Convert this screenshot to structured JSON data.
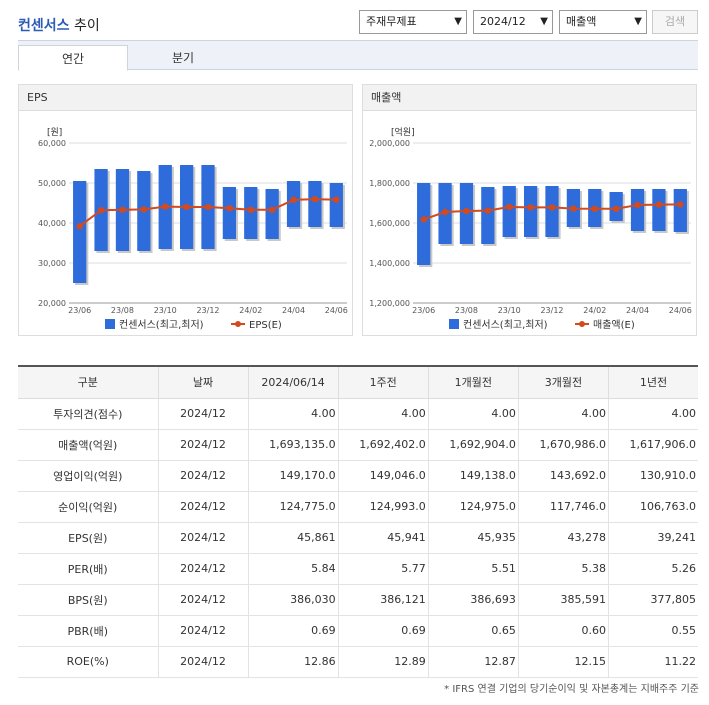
{
  "header": {
    "title_main": "컨센서스",
    "title_rest": " 추이",
    "select_type": "주재무제표",
    "select_date": "2024/12",
    "select_metric": "매출액",
    "search_label": "검색"
  },
  "tabs": [
    {
      "label": "연간"
    },
    {
      "label": "분기"
    }
  ],
  "colors": {
    "bar": "#2e6cdc",
    "line": "#d24a1e",
    "accent": "#2c5bb8"
  },
  "chart_data": [
    {
      "type": "bar",
      "title": "EPS",
      "unit": "[원]",
      "categories": [
        "23/06",
        "23/07",
        "23/08",
        "23/09",
        "23/10",
        "23/11",
        "23/12",
        "24/01",
        "24/02",
        "24/03",
        "24/04",
        "24/05",
        "24/06"
      ],
      "x_tick_labels": [
        "23/06",
        "23/08",
        "23/10",
        "23/12",
        "24/02",
        "24/04",
        "24/06"
      ],
      "ylim": [
        20000,
        60000
      ],
      "y_ticks": [
        20000,
        30000,
        40000,
        50000,
        60000
      ],
      "y_tick_labels": [
        "20,000",
        "30,000",
        "40,000",
        "50,000",
        "60,000"
      ],
      "series": [
        {
          "name": "컨센서스(최고,최저)",
          "type": "range",
          "low": [
            25000,
            33000,
            33000,
            33000,
            33500,
            33500,
            33500,
            36000,
            36000,
            36000,
            39000,
            39000,
            39000
          ],
          "high": [
            50500,
            53500,
            53500,
            53000,
            54500,
            54500,
            54500,
            49000,
            49000,
            48500,
            50500,
            50500,
            50000
          ]
        },
        {
          "name": "EPS(E)",
          "type": "line",
          "values": [
            39200,
            43200,
            43300,
            43400,
            44100,
            44000,
            44000,
            43700,
            43300,
            43300,
            45800,
            45950,
            45850
          ]
        }
      ]
    },
    {
      "type": "bar",
      "title": "매출액",
      "unit": "[억원]",
      "categories": [
        "23/06",
        "23/07",
        "23/08",
        "23/09",
        "23/10",
        "23/11",
        "23/12",
        "24/01",
        "24/02",
        "24/03",
        "24/04",
        "24/05",
        "24/06"
      ],
      "x_tick_labels": [
        "23/06",
        "23/08",
        "23/10",
        "23/12",
        "24/02",
        "24/04",
        "24/06"
      ],
      "ylim": [
        1200000,
        2000000
      ],
      "y_ticks": [
        1200000,
        1400000,
        1600000,
        1800000,
        2000000
      ],
      "y_tick_labels": [
        "1,200,000",
        "1,400,000",
        "1,600,000",
        "1,800,000",
        "2,000,000"
      ],
      "series": [
        {
          "name": "컨센서스(최고,최저)",
          "type": "range",
          "low": [
            1390000,
            1495000,
            1495000,
            1495000,
            1530000,
            1530000,
            1530000,
            1580000,
            1580000,
            1610000,
            1560000,
            1560000,
            1555000
          ],
          "high": [
            1800000,
            1800000,
            1800000,
            1780000,
            1785000,
            1785000,
            1785000,
            1770000,
            1770000,
            1755000,
            1770000,
            1770000,
            1770000
          ]
        },
        {
          "name": "매출액(E)",
          "type": "line",
          "values": [
            1618000,
            1655000,
            1660000,
            1662000,
            1680000,
            1678000,
            1678000,
            1672000,
            1671000,
            1671000,
            1690000,
            1692000,
            1693000
          ]
        }
      ]
    }
  ],
  "table": {
    "headers": [
      "구분",
      "날짜",
      "2024/06/14",
      "1주전",
      "1개월전",
      "3개월전",
      "1년전"
    ],
    "rows": [
      [
        "투자의견(점수)",
        "2024/12",
        "4.00",
        "4.00",
        "4.00",
        "4.00",
        "4.00"
      ],
      [
        "매출액(억원)",
        "2024/12",
        "1,693,135.0",
        "1,692,402.0",
        "1,692,904.0",
        "1,670,986.0",
        "1,617,906.0"
      ],
      [
        "영업이익(억원)",
        "2024/12",
        "149,170.0",
        "149,046.0",
        "149,138.0",
        "143,692.0",
        "130,910.0"
      ],
      [
        "순이익(억원)",
        "2024/12",
        "124,775.0",
        "124,993.0",
        "124,975.0",
        "117,746.0",
        "106,763.0"
      ],
      [
        "EPS(원)",
        "2024/12",
        "45,861",
        "45,941",
        "45,935",
        "43,278",
        "39,241"
      ],
      [
        "PER(배)",
        "2024/12",
        "5.84",
        "5.77",
        "5.51",
        "5.38",
        "5.26"
      ],
      [
        "BPS(원)",
        "2024/12",
        "386,030",
        "386,121",
        "386,693",
        "385,591",
        "377,805"
      ],
      [
        "PBR(배)",
        "2024/12",
        "0.69",
        "0.69",
        "0.65",
        "0.60",
        "0.55"
      ],
      [
        "ROE(%)",
        "2024/12",
        "12.86",
        "12.89",
        "12.87",
        "12.15",
        "11.22"
      ]
    ]
  },
  "footnote": "* IFRS 연결 기업의 당기순이익 및 자본총계는 지배주주 기준"
}
